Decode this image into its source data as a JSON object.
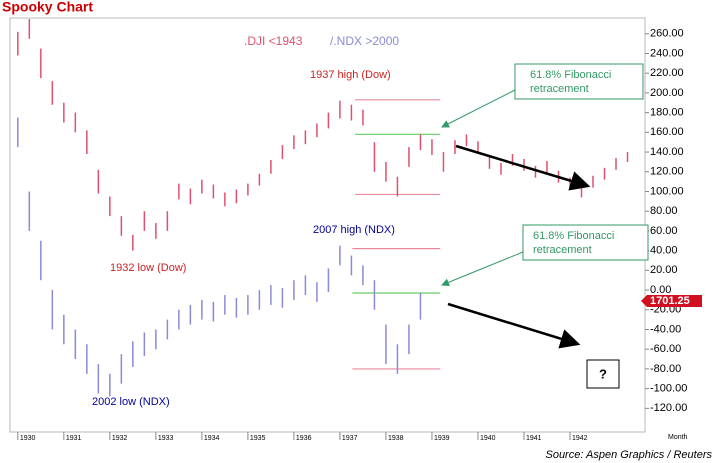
{
  "chart_data": {
    "type": "range-bar",
    "title": "Spooky Chart",
    "xlim": [
      1929.83,
      1943.63
    ],
    "xticks": [
      1930,
      1931,
      1932,
      1933,
      1934,
      1935,
      1936,
      1937,
      1938,
      1939,
      1940,
      1941,
      1942
    ],
    "xlabel": "Month",
    "ylim": [
      -144,
      276
    ],
    "yticks": [
      {
        "value": 260,
        "label": "260.00"
      },
      {
        "value": 240,
        "label": "240.00"
      },
      {
        "value": 220,
        "label": "220.00"
      },
      {
        "value": 200,
        "label": "200.00"
      },
      {
        "value": 180,
        "label": "180.00"
      },
      {
        "value": 160,
        "label": "160.00"
      },
      {
        "value": 140,
        "label": "140.00"
      },
      {
        "value": 120,
        "label": "120.00"
      },
      {
        "value": 100,
        "label": "100.00"
      },
      {
        "value": 80,
        "label": "80.00"
      },
      {
        "value": 60,
        "label": "60.00"
      },
      {
        "value": 40,
        "label": "40.00"
      },
      {
        "value": 20,
        "label": "20.00"
      },
      {
        "value": 0,
        "label": "0.00"
      },
      {
        "value": -20,
        "label": "-20.00"
      },
      {
        "value": -40,
        "label": "-40.00"
      },
      {
        "value": -60,
        "label": "-60.00"
      },
      {
        "value": -80,
        "label": "-80.00"
      },
      {
        "value": -100,
        "label": "-100.00"
      },
      {
        "value": -120,
        "label": "-120.00"
      }
    ],
    "series": [
      {
        "name": ".DJI  <1943",
        "color": "#e0506e",
        "x": [
          1930,
          1930.25,
          1930.5,
          1930.75,
          1931,
          1931.25,
          1931.5,
          1931.75,
          1932,
          1932.25,
          1932.5,
          1932.75,
          1933,
          1933.25,
          1933.5,
          1933.75,
          1934,
          1934.25,
          1934.5,
          1934.75,
          1935,
          1935.25,
          1935.5,
          1935.75,
          1936,
          1936.25,
          1936.5,
          1936.75,
          1937,
          1937.25,
          1937.5,
          1937.75,
          1938,
          1938.25,
          1938.5,
          1938.75,
          1939,
          1939.25,
          1939.5,
          1939.75,
          1940,
          1940.25,
          1940.5,
          1940.75,
          1941,
          1941.25,
          1941.5,
          1941.75,
          1942,
          1942.25,
          1942.5,
          1942.75,
          1943,
          1943.25
        ],
        "high": [
          262,
          275,
          245,
          212,
          190,
          180,
          162,
          122,
          95,
          75,
          56,
          80,
          68,
          80,
          108,
          103,
          112,
          107,
          99,
          102,
          108,
          118,
          132,
          147,
          157,
          162,
          169,
          180,
          192,
          188,
          183,
          150,
          130,
          115,
          145,
          158,
          153,
          140,
          152,
          158,
          151,
          137,
          129,
          138,
          133,
          126,
          131,
          121,
          114,
          106,
          116,
          124,
          134,
          140
        ],
        "low": [
          238,
          255,
          215,
          188,
          170,
          160,
          138,
          98,
          75,
          55,
          40,
          60,
          52,
          60,
          92,
          87,
          98,
          93,
          85,
          88,
          96,
          106,
          118,
          133,
          143,
          148,
          155,
          164,
          174,
          172,
          167,
          120,
          110,
          95,
          125,
          142,
          137,
          120,
          138,
          146,
          139,
          123,
          117,
          126,
          121,
          114,
          119,
          109,
          102,
          94,
          104,
          112,
          122,
          130
        ]
      },
      {
        "name": "/.NDX  >2000",
        "color": "#8a8ad8",
        "x": [
          1930,
          1930.25,
          1930.5,
          1930.75,
          1931,
          1931.25,
          1931.5,
          1931.75,
          1932,
          1932.25,
          1932.5,
          1932.75,
          1933,
          1933.25,
          1933.5,
          1933.75,
          1934,
          1934.25,
          1934.5,
          1934.75,
          1935,
          1935.25,
          1935.5,
          1935.75,
          1936,
          1936.25,
          1936.5,
          1936.75,
          1937,
          1937.25,
          1937.5,
          1937.75,
          1938,
          1938.25,
          1938.5,
          1938.75
        ],
        "high": [
          175,
          100,
          50,
          0,
          -25,
          -40,
          -55,
          -75,
          -85,
          -65,
          -52,
          -43,
          -40,
          -30,
          -20,
          -15,
          -10,
          -12,
          -5,
          -8,
          -5,
          0,
          5,
          2,
          10,
          15,
          8,
          22,
          45,
          35,
          25,
          10,
          -35,
          -55,
          -35,
          -3
        ],
        "low": [
          145,
          60,
          10,
          -40,
          -55,
          -70,
          -85,
          -105,
          -108,
          -95,
          -78,
          -67,
          -60,
          -50,
          -40,
          -35,
          -30,
          -32,
          -25,
          -28,
          -25,
          -20,
          -15,
          -18,
          -10,
          -5,
          -12,
          -2,
          25,
          15,
          5,
          -20,
          -75,
          -85,
          -65,
          -30
        ]
      }
    ],
    "reference_lines": [
      {
        "value": 193,
        "x": [
          1937.33,
          1939.18
        ],
        "color": "#e88a9c"
      },
      {
        "value": 158,
        "x": [
          1937.33,
          1939.18
        ],
        "color": "#66cc66"
      },
      {
        "value": 97,
        "x": [
          1937.33,
          1939.18
        ],
        "color": "#e88a9c"
      },
      {
        "value": 42,
        "x": [
          1937.27,
          1939.18
        ],
        "color": "#e88a9c"
      },
      {
        "value": -3,
        "x": [
          1937.27,
          1939.18
        ],
        "color": "#66cc66"
      },
      {
        "value": -80,
        "x": [
          1937.27,
          1939.18
        ],
        "color": "#e88a9c"
      }
    ],
    "annotations": {
      "dow_high": "1937 high (Dow)",
      "dow_low": "1932 low (Dow)",
      "ndx_high": "2007 high (NDX)",
      "ndx_low": "2002 low (NDX)",
      "fib_top": [
        "61.8% Fibonacci",
        "retracement"
      ],
      "fib_bottom": [
        "61.8% Fibonacci",
        "retracement"
      ],
      "question": "?",
      "last_price": "1701.25",
      "source": "Source: Aspen Graphics / Reuters"
    }
  }
}
